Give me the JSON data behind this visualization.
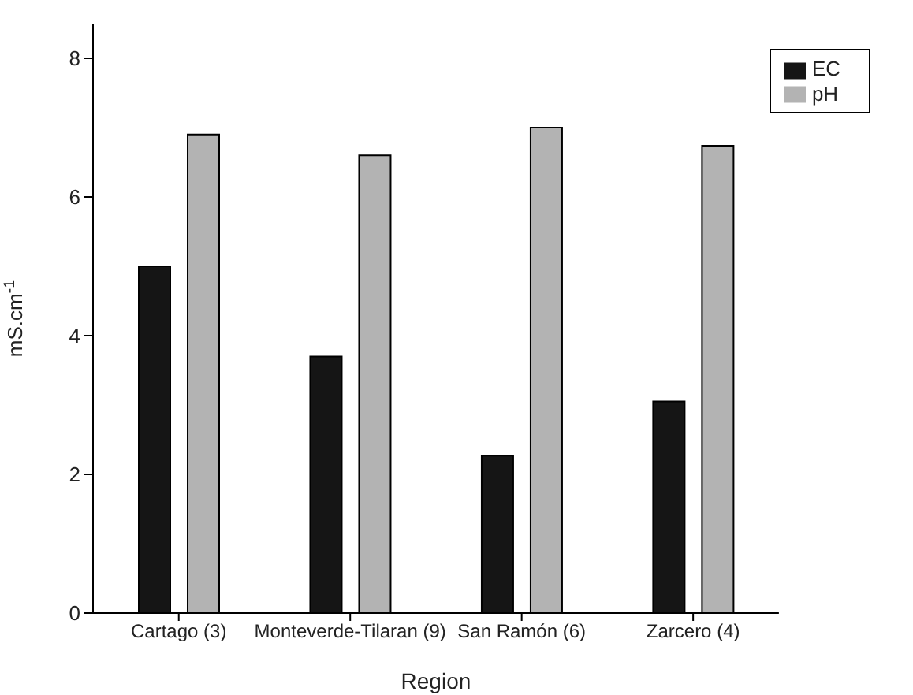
{
  "chart_data": {
    "type": "bar",
    "xlabel": "Region",
    "ylabel": "mS.cm$^{-1}$",
    "categories": [
      "Cartago (3)",
      "Monteverde-Tilaran (9)",
      "San Ramón (6)",
      "Zarcero (4)"
    ],
    "series": [
      {
        "name": "EC",
        "color": "#151515",
        "values": [
          5.0,
          3.7,
          2.27,
          3.05
        ]
      },
      {
        "name": "pH",
        "color": "#b3b3b3",
        "values": [
          6.9,
          6.6,
          7.0,
          6.74
        ]
      }
    ],
    "ylim": [
      0,
      8.5
    ],
    "yticks": [
      0,
      2,
      4,
      6,
      8
    ],
    "grid": false,
    "legend": "top right"
  }
}
